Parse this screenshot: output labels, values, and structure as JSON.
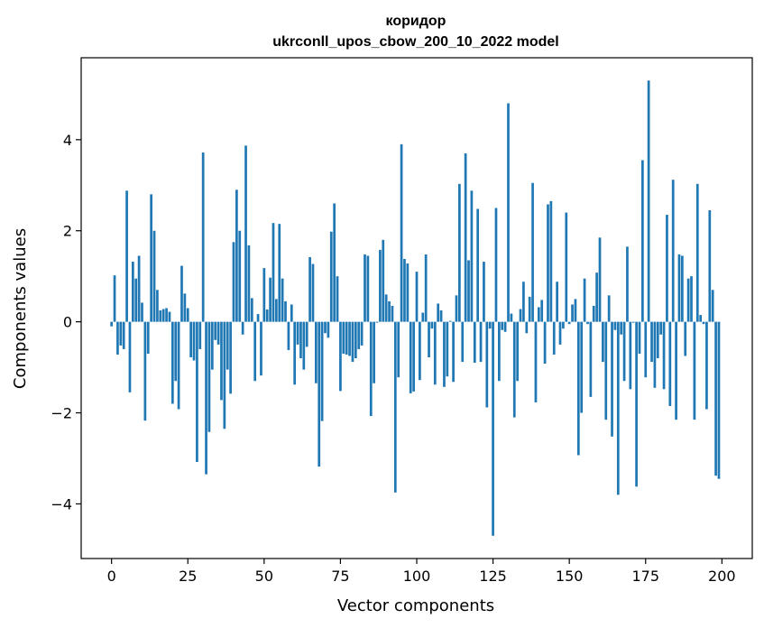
{
  "chart_data": {
    "type": "bar",
    "title": "коридор",
    "subtitle": "ukrconll_upos_cbow_200_10_2022 model",
    "xlabel": "Vector components",
    "ylabel": "Components values",
    "xlim": [
      -9.95,
      209.95
    ],
    "ylim": [
      -5.2,
      5.8
    ],
    "xticks": [
      0,
      25,
      50,
      75,
      100,
      125,
      150,
      175,
      200
    ],
    "yticks": [
      -4,
      -2,
      0,
      2,
      4
    ],
    "ytick_labels": [
      "−4",
      "−2",
      "0",
      "2",
      "4"
    ],
    "grid": false,
    "bar_color": "#1f77b4",
    "x": [
      0,
      1,
      2,
      3,
      4,
      5,
      6,
      7,
      8,
      9,
      10,
      11,
      12,
      13,
      14,
      15,
      16,
      17,
      18,
      19,
      20,
      21,
      22,
      23,
      24,
      25,
      26,
      27,
      28,
      29,
      30,
      31,
      32,
      33,
      34,
      35,
      36,
      37,
      38,
      39,
      40,
      41,
      42,
      43,
      44,
      45,
      46,
      47,
      48,
      49,
      50,
      51,
      52,
      53,
      54,
      55,
      56,
      57,
      58,
      59,
      60,
      61,
      62,
      63,
      64,
      65,
      66,
      67,
      68,
      69,
      70,
      71,
      72,
      73,
      74,
      75,
      76,
      77,
      78,
      79,
      80,
      81,
      82,
      83,
      84,
      85,
      86,
      87,
      88,
      89,
      90,
      91,
      92,
      93,
      94,
      95,
      96,
      97,
      98,
      99,
      100,
      101,
      102,
      103,
      104,
      105,
      106,
      107,
      108,
      109,
      110,
      111,
      112,
      113,
      114,
      115,
      116,
      117,
      118,
      119,
      120,
      121,
      122,
      123,
      124,
      125,
      126,
      127,
      128,
      129,
      130,
      131,
      132,
      133,
      134,
      135,
      136,
      137,
      138,
      139,
      140,
      141,
      142,
      143,
      144,
      145,
      146,
      147,
      148,
      149,
      150,
      151,
      152,
      153,
      154,
      155,
      156,
      157,
      158,
      159,
      160,
      161,
      162,
      163,
      164,
      165,
      166,
      167,
      168,
      169,
      170,
      171,
      172,
      173,
      174,
      175,
      176,
      177,
      178,
      179,
      180,
      181,
      182,
      183,
      184,
      185,
      186,
      187,
      188,
      189,
      190,
      191,
      192,
      193,
      194,
      195,
      196,
      197,
      198,
      199
    ],
    "values": [
      -0.1,
      1.02,
      -0.72,
      -0.52,
      -0.6,
      2.88,
      -1.55,
      1.32,
      0.95,
      1.45,
      0.42,
      -2.17,
      -0.7,
      2.8,
      2.0,
      0.7,
      0.25,
      0.28,
      0.3,
      0.22,
      -1.8,
      -1.3,
      -1.92,
      1.23,
      0.62,
      0.3,
      -0.78,
      -0.85,
      -3.08,
      -0.6,
      3.72,
      -3.35,
      -2.42,
      -1.05,
      -0.4,
      -0.5,
      -1.72,
      -2.35,
      -1.05,
      -1.58,
      1.75,
      2.9,
      2.0,
      -0.28,
      3.87,
      1.68,
      0.52,
      -1.3,
      0.17,
      -1.18,
      1.18,
      0.27,
      0.97,
      2.17,
      0.5,
      2.15,
      0.95,
      0.45,
      -0.62,
      0.38,
      -1.38,
      -0.5,
      -0.8,
      -1.05,
      -0.55,
      1.42,
      1.27,
      -1.35,
      -3.18,
      -2.18,
      -0.25,
      -0.35,
      1.98,
      2.6,
      1.0,
      -1.52,
      -0.7,
      -0.72,
      -0.75,
      -0.88,
      -0.8,
      -0.6,
      -0.52,
      1.48,
      1.45,
      -2.07,
      -1.35,
      -0.02,
      1.58,
      1.8,
      0.6,
      0.45,
      0.35,
      -3.75,
      -1.22,
      3.9,
      1.38,
      1.28,
      -1.57,
      -1.53,
      1.1,
      -1.28,
      0.2,
      1.48,
      -0.78,
      -0.15,
      -1.38,
      0.4,
      0.25,
      -1.43,
      -1.2,
      0.02,
      -1.32,
      0.58,
      3.03,
      -0.88,
      3.7,
      1.35,
      2.88,
      -0.9,
      2.48,
      -0.88,
      1.32,
      -1.88,
      -0.15,
      -4.7,
      2.5,
      -1.3,
      -0.18,
      -0.22,
      4.8,
      0.18,
      -2.1,
      -1.3,
      0.28,
      0.88,
      -0.25,
      0.55,
      3.05,
      -1.77,
      0.32,
      0.48,
      -0.92,
      2.58,
      2.65,
      -0.72,
      0.88,
      -0.5,
      -0.15,
      2.4,
      -0.05,
      0.38,
      0.5,
      -2.93,
      -2.0,
      0.95,
      -0.05,
      -1.65,
      0.35,
      1.08,
      1.85,
      -0.88,
      -2.15,
      0.58,
      -2.52,
      -0.18,
      -3.8,
      -0.28,
      -1.3,
      1.65,
      -1.48,
      -0.02,
      -3.62,
      -0.7,
      3.55,
      -1.22,
      5.3,
      -0.88,
      -1.45,
      -0.8,
      -0.28,
      -1.48,
      2.35,
      -1.85,
      3.12,
      -2.15,
      1.48,
      1.45,
      -0.75,
      0.95,
      1.0,
      -2.15,
      3.03,
      0.15,
      -0.05,
      -1.92,
      2.45,
      0.7,
      -3.38,
      -3.45
    ]
  }
}
